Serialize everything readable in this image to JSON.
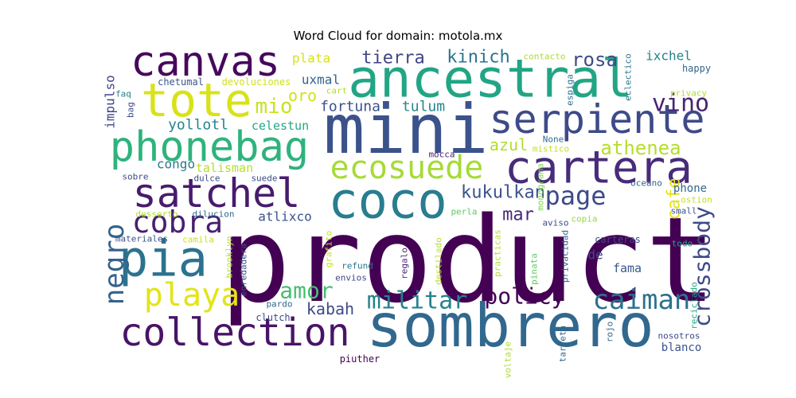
{
  "chart_data": {
    "type": "wordcloud",
    "title": "Word Cloud for domain: motola.mx",
    "words": [
      {
        "text": "product",
        "color": "#440154"
      },
      {
        "text": "sombrero",
        "color": "#31688e"
      },
      {
        "text": "mini",
        "color": "#3b528b"
      },
      {
        "text": "ancestral",
        "color": "#21a585"
      },
      {
        "text": "coco",
        "color": "#287d8e"
      },
      {
        "text": "canvas",
        "color": "#46085c"
      },
      {
        "text": "tote",
        "color": "#d8e219"
      },
      {
        "text": "cartera",
        "color": "#472c7a"
      },
      {
        "text": "serpiente",
        "color": "#3e4a89"
      },
      {
        "text": "phonebag",
        "color": "#2eb37c"
      },
      {
        "text": "satchel",
        "color": "#481b6d"
      },
      {
        "text": "pia",
        "color": "#2c728e"
      },
      {
        "text": "collection",
        "color": "#481467"
      },
      {
        "text": "ecosuede",
        "color": "#a5db36"
      },
      {
        "text": "page",
        "color": "#3e4a89"
      },
      {
        "text": "negro",
        "color": "#33638d"
      },
      {
        "text": "cobra",
        "color": "#481f70"
      },
      {
        "text": "playa",
        "color": "#e2e418"
      },
      {
        "text": "caiman",
        "color": "#2c728e"
      },
      {
        "text": "militar",
        "color": "#26828e"
      },
      {
        "text": "amor",
        "color": "#44bf70"
      },
      {
        "text": "crossbody",
        "color": "#3e4a89"
      },
      {
        "text": "policy",
        "color": "#440154"
      },
      {
        "text": "vino",
        "color": "#482576"
      },
      {
        "text": "athenea",
        "color": "#b5de2b"
      },
      {
        "text": "kukulkan",
        "color": "#3b528b"
      },
      {
        "text": "mio",
        "color": "#cae11f"
      },
      {
        "text": "tierra",
        "color": "#414487"
      },
      {
        "text": "kinich",
        "color": "#2c728e"
      },
      {
        "text": "rosa",
        "color": "#3e4a89"
      },
      {
        "text": "cafe",
        "color": "#e5e419"
      },
      {
        "text": "mar",
        "color": "#482878"
      },
      {
        "text": "kabah",
        "color": "#3e4a89"
      },
      {
        "text": "azul",
        "color": "#b2dd2d"
      },
      {
        "text": "oro",
        "color": "#d2e21b"
      },
      {
        "text": "fortuna",
        "color": "#3b528b"
      },
      {
        "text": "tulum",
        "color": "#25858e"
      },
      {
        "text": "yollotl",
        "color": "#25838e"
      },
      {
        "text": "ixchel",
        "color": "#26828e"
      },
      {
        "text": "uxmal",
        "color": "#33638d"
      },
      {
        "text": "atlixco",
        "color": "#3b528b"
      },
      {
        "text": "celestun",
        "color": "#22a884"
      },
      {
        "text": "plata",
        "color": "#d8e219"
      },
      {
        "text": "impulso",
        "color": "#414487"
      },
      {
        "text": "congo",
        "color": "#2a788e"
      },
      {
        "text": "talisman",
        "color": "#b8de29"
      },
      {
        "text": "de",
        "color": "#3e4a89"
      },
      {
        "text": "fama",
        "color": "#38588c"
      },
      {
        "text": "phone",
        "color": "#31688e"
      },
      {
        "text": "blanco",
        "color": "#3b528b"
      },
      {
        "text": "chetumal",
        "color": "#39568c"
      },
      {
        "text": "devoluciones",
        "color": "#d0e11c"
      },
      {
        "text": "contacto",
        "color": "#addc30"
      },
      {
        "text": "happy",
        "color": "#33638d"
      },
      {
        "text": "privacy",
        "color": "#b5de2b"
      },
      {
        "text": "eclectico",
        "color": "#2a788e"
      },
      {
        "text": "espiga",
        "color": "#2c728e"
      },
      {
        "text": "cart",
        "color": "#b5de2b"
      },
      {
        "text": "faq",
        "color": "#26828e"
      },
      {
        "text": "bag",
        "color": "#3e4a89"
      },
      {
        "text": "None",
        "color": "#31688e"
      },
      {
        "text": "mistico",
        "color": "#c2df23"
      },
      {
        "text": "monograma",
        "color": "#7fd34e"
      },
      {
        "text": "mocca",
        "color": "#482878"
      },
      {
        "text": "sobre",
        "color": "#3e4a89"
      },
      {
        "text": "dulce",
        "color": "#3e4a89"
      },
      {
        "text": "suede",
        "color": "#3e4a89"
      },
      {
        "text": "oceano",
        "color": "#33638d"
      },
      {
        "text": "ostion",
        "color": "#c8e020"
      },
      {
        "text": "small",
        "color": "#3b528b"
      },
      {
        "text": "desserto",
        "color": "#addc30"
      },
      {
        "text": "dilucion",
        "color": "#31688e"
      },
      {
        "text": "perla",
        "color": "#5ec962"
      },
      {
        "text": "copia",
        "color": "#9bd93c"
      },
      {
        "text": "aviso",
        "color": "#3e4a89"
      },
      {
        "text": "materiales",
        "color": "#3b528b"
      },
      {
        "text": "camila",
        "color": "#cae11f"
      },
      {
        "text": "brooklyn",
        "color": "#b5de2b"
      },
      {
        "text": "carteras",
        "color": "#3e4a89"
      },
      {
        "text": "todo",
        "color": "#22a884"
      },
      {
        "text": "enredadera",
        "color": "#3b528b"
      },
      {
        "text": "grafito",
        "color": "#c5e021"
      },
      {
        "text": "refund",
        "color": "#2c728e"
      },
      {
        "text": "envios",
        "color": "#3e4a89"
      },
      {
        "text": "regalo",
        "color": "#482878"
      },
      {
        "text": "destilado",
        "color": "#b8de29"
      },
      {
        "text": "practicas",
        "color": "#b5de2b"
      },
      {
        "text": "pinata",
        "color": "#5ec962"
      },
      {
        "text": "privacidad",
        "color": "#33638d"
      },
      {
        "text": "reciclado",
        "color": "#22a884"
      },
      {
        "text": "pardo",
        "color": "#31688e"
      },
      {
        "text": "clutch",
        "color": "#3e4a89"
      },
      {
        "text": "piuther",
        "color": "#440154"
      },
      {
        "text": "voltaje",
        "color": "#addc30"
      },
      {
        "text": "tarjeta",
        "color": "#31688e"
      },
      {
        "text": "rojo",
        "color": "#31688e"
      },
      {
        "text": "nosotros",
        "color": "#3e4a89"
      }
    ]
  }
}
